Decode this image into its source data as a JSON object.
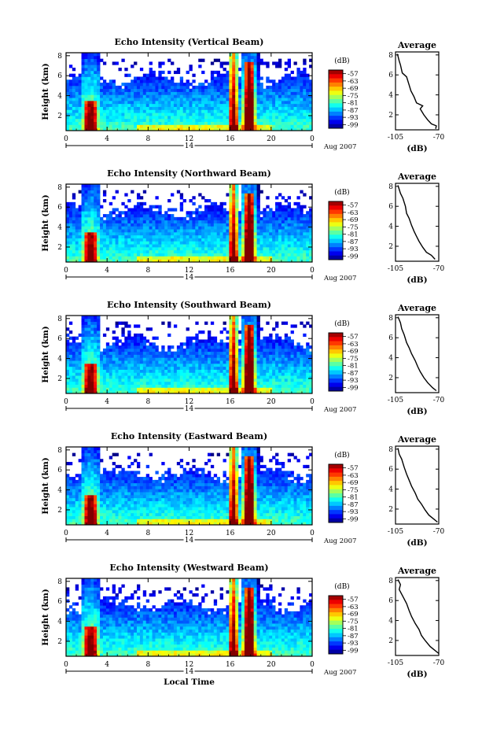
{
  "chart_data": [
    {
      "type": "heatmap",
      "title": "Echo Intensity (Vertical Beam)",
      "ylabel": "Height (km)",
      "xlabel": "",
      "x_ticks": [
        "0",
        "4",
        "8",
        "12",
        "16",
        "20",
        "0"
      ],
      "y_ticks": [
        "2",
        "4",
        "6",
        "8"
      ],
      "xlim": [
        0,
        24
      ],
      "ylim": [
        0.5,
        8.3
      ],
      "date_label": "14",
      "month_label": "Aug 2007",
      "colorbar": {
        "unit": "(dB)",
        "labels": [
          "-57",
          "-63",
          "-69",
          "-75",
          "-81",
          "-87",
          "-93",
          "-99"
        ],
        "range": [
          -99,
          -57
        ]
      },
      "avg_profile": {
        "title": "Average",
        "xlabel": "(dB)",
        "x_ticks": [
          "-105",
          "-70"
        ],
        "xlim": [
          -105,
          -70
        ],
        "y_ticks": [
          "2",
          "4",
          "6",
          "8"
        ],
        "ylim": [
          0.5,
          8.3
        ],
        "points": [
          [
            -103.5,
            8.1
          ],
          [
            -102,
            7.4
          ],
          [
            -101,
            7.0
          ],
          [
            -99.5,
            6.2
          ],
          [
            -96,
            5.8
          ],
          [
            -94,
            5.0
          ],
          [
            -92.5,
            4.4
          ],
          [
            -90,
            3.8
          ],
          [
            -88,
            3.2
          ],
          [
            -83,
            2.9
          ],
          [
            -85,
            2.6
          ],
          [
            -82,
            2.0
          ],
          [
            -79,
            1.5
          ],
          [
            -76,
            1.1
          ],
          [
            -72,
            0.9
          ],
          [
            -72.5,
            0.6
          ]
        ]
      }
    },
    {
      "type": "heatmap",
      "title": "Echo Intensity (Northward Beam)",
      "ylabel": "Height (km)",
      "xlabel": "",
      "x_ticks": [
        "0",
        "4",
        "8",
        "12",
        "16",
        "20",
        "0"
      ],
      "y_ticks": [
        "2",
        "4",
        "6",
        "8"
      ],
      "xlim": [
        0,
        24
      ],
      "ylim": [
        0.5,
        8.3
      ],
      "date_label": "14",
      "month_label": "Aug 2007",
      "colorbar": {
        "unit": "(dB)",
        "labels": [
          "-57",
          "-63",
          "-69",
          "-75",
          "-81",
          "-87",
          "-93",
          "-99"
        ],
        "range": [
          -99,
          -57
        ]
      },
      "avg_profile": {
        "title": "Average",
        "xlabel": "(dB)",
        "x_ticks": [
          "-105",
          "-70"
        ],
        "xlim": [
          -105,
          -70
        ],
        "y_ticks": [
          "2",
          "4",
          "6",
          "8"
        ],
        "ylim": [
          0.5,
          8.3
        ],
        "points": [
          [
            -103,
            8.1
          ],
          [
            -101,
            7.3
          ],
          [
            -99,
            6.8
          ],
          [
            -97,
            6.0
          ],
          [
            -96,
            5.3
          ],
          [
            -94,
            4.8
          ],
          [
            -92,
            4.1
          ],
          [
            -90,
            3.5
          ],
          [
            -88,
            3.0
          ],
          [
            -86,
            2.5
          ],
          [
            -83,
            1.9
          ],
          [
            -80,
            1.4
          ],
          [
            -76,
            1.1
          ],
          [
            -73,
            0.7
          ]
        ]
      }
    },
    {
      "type": "heatmap",
      "title": "Echo Intensity (Southward Beam)",
      "ylabel": "Height (km)",
      "xlabel": "",
      "x_ticks": [
        "0",
        "4",
        "8",
        "12",
        "16",
        "20",
        "0"
      ],
      "y_ticks": [
        "2",
        "4",
        "6",
        "8"
      ],
      "xlim": [
        0,
        24
      ],
      "ylim": [
        0.5,
        8.3
      ],
      "date_label": "14",
      "month_label": "Aug 2007",
      "colorbar": {
        "unit": "(dB)",
        "labels": [
          "-57",
          "-63",
          "-69",
          "-75",
          "-81",
          "-87",
          "-93",
          "-99"
        ],
        "range": [
          -99,
          -57
        ]
      },
      "avg_profile": {
        "title": "Average",
        "xlabel": "(dB)",
        "x_ticks": [
          "-105",
          "-70"
        ],
        "xlim": [
          -105,
          -70
        ],
        "y_ticks": [
          "2",
          "4",
          "6",
          "8"
        ],
        "ylim": [
          0.5,
          8.3
        ],
        "points": [
          [
            -103,
            8.1
          ],
          [
            -101,
            7.5
          ],
          [
            -100,
            6.9
          ],
          [
            -98,
            6.3
          ],
          [
            -96,
            5.5
          ],
          [
            -94,
            5.0
          ],
          [
            -92,
            4.4
          ],
          [
            -89,
            3.7
          ],
          [
            -87,
            3.1
          ],
          [
            -85,
            2.6
          ],
          [
            -82,
            2.0
          ],
          [
            -79,
            1.5
          ],
          [
            -75,
            1.0
          ],
          [
            -72,
            0.7
          ]
        ]
      }
    },
    {
      "type": "heatmap",
      "title": "Echo Intensity (Eastward Beam)",
      "ylabel": "Height (km)",
      "xlabel": "",
      "x_ticks": [
        "0",
        "4",
        "8",
        "12",
        "16",
        "20",
        "0"
      ],
      "y_ticks": [
        "2",
        "4",
        "6",
        "8"
      ],
      "xlim": [
        0,
        24
      ],
      "ylim": [
        0.5,
        8.3
      ],
      "date_label": "14",
      "month_label": "Aug 2007",
      "colorbar": {
        "unit": "(dB)",
        "labels": [
          "-57",
          "-63",
          "-69",
          "-75",
          "-81",
          "-87",
          "-93",
          "-99"
        ],
        "range": [
          -99,
          -57
        ]
      },
      "avg_profile": {
        "title": "Average",
        "xlabel": "(dB)",
        "x_ticks": [
          "-105",
          "-70"
        ],
        "xlim": [
          -105,
          -70
        ],
        "y_ticks": [
          "2",
          "4",
          "6",
          "8"
        ],
        "ylim": [
          0.5,
          8.3
        ],
        "points": [
          [
            -103,
            8.1
          ],
          [
            -102,
            7.5
          ],
          [
            -100,
            7.0
          ],
          [
            -98,
            6.2
          ],
          [
            -96,
            5.5
          ],
          [
            -94,
            4.9
          ],
          [
            -92,
            4.3
          ],
          [
            -89,
            3.6
          ],
          [
            -87,
            3.0
          ],
          [
            -84,
            2.5
          ],
          [
            -81,
            1.9
          ],
          [
            -78,
            1.4
          ],
          [
            -74,
            1.0
          ],
          [
            -71,
            0.7
          ]
        ]
      }
    },
    {
      "type": "heatmap",
      "title": "Echo Intensity (Westward Beam)",
      "ylabel": "Height (km)",
      "xlabel": "Local Time",
      "x_ticks": [
        "0",
        "4",
        "8",
        "12",
        "16",
        "20",
        "0"
      ],
      "y_ticks": [
        "2",
        "4",
        "6",
        "8"
      ],
      "xlim": [
        0,
        24
      ],
      "ylim": [
        0.5,
        8.3
      ],
      "date_label": "14",
      "month_label": "Aug 2007",
      "colorbar": {
        "unit": "(dB)",
        "labels": [
          "-57",
          "-63",
          "-69",
          "-75",
          "-81",
          "-87",
          "-93",
          "-99"
        ],
        "range": [
          -99,
          -57
        ]
      },
      "avg_profile": {
        "title": "Average",
        "xlabel": "(dB)",
        "x_ticks": [
          "-105",
          "-70"
        ],
        "xlim": [
          -105,
          -70
        ],
        "y_ticks": [
          "2",
          "4",
          "6",
          "8"
        ],
        "ylim": [
          0.5,
          8.3
        ],
        "points": [
          [
            -103,
            8.1
          ],
          [
            -101,
            7.6
          ],
          [
            -102,
            7.1
          ],
          [
            -99,
            6.4
          ],
          [
            -96,
            5.7
          ],
          [
            -94,
            5.0
          ],
          [
            -92,
            4.4
          ],
          [
            -89,
            3.7
          ],
          [
            -86,
            3.1
          ],
          [
            -84,
            2.5
          ],
          [
            -81,
            2.0
          ],
          [
            -77,
            1.4
          ],
          [
            -73,
            1.0
          ],
          [
            -70,
            0.7
          ]
        ]
      }
    }
  ]
}
